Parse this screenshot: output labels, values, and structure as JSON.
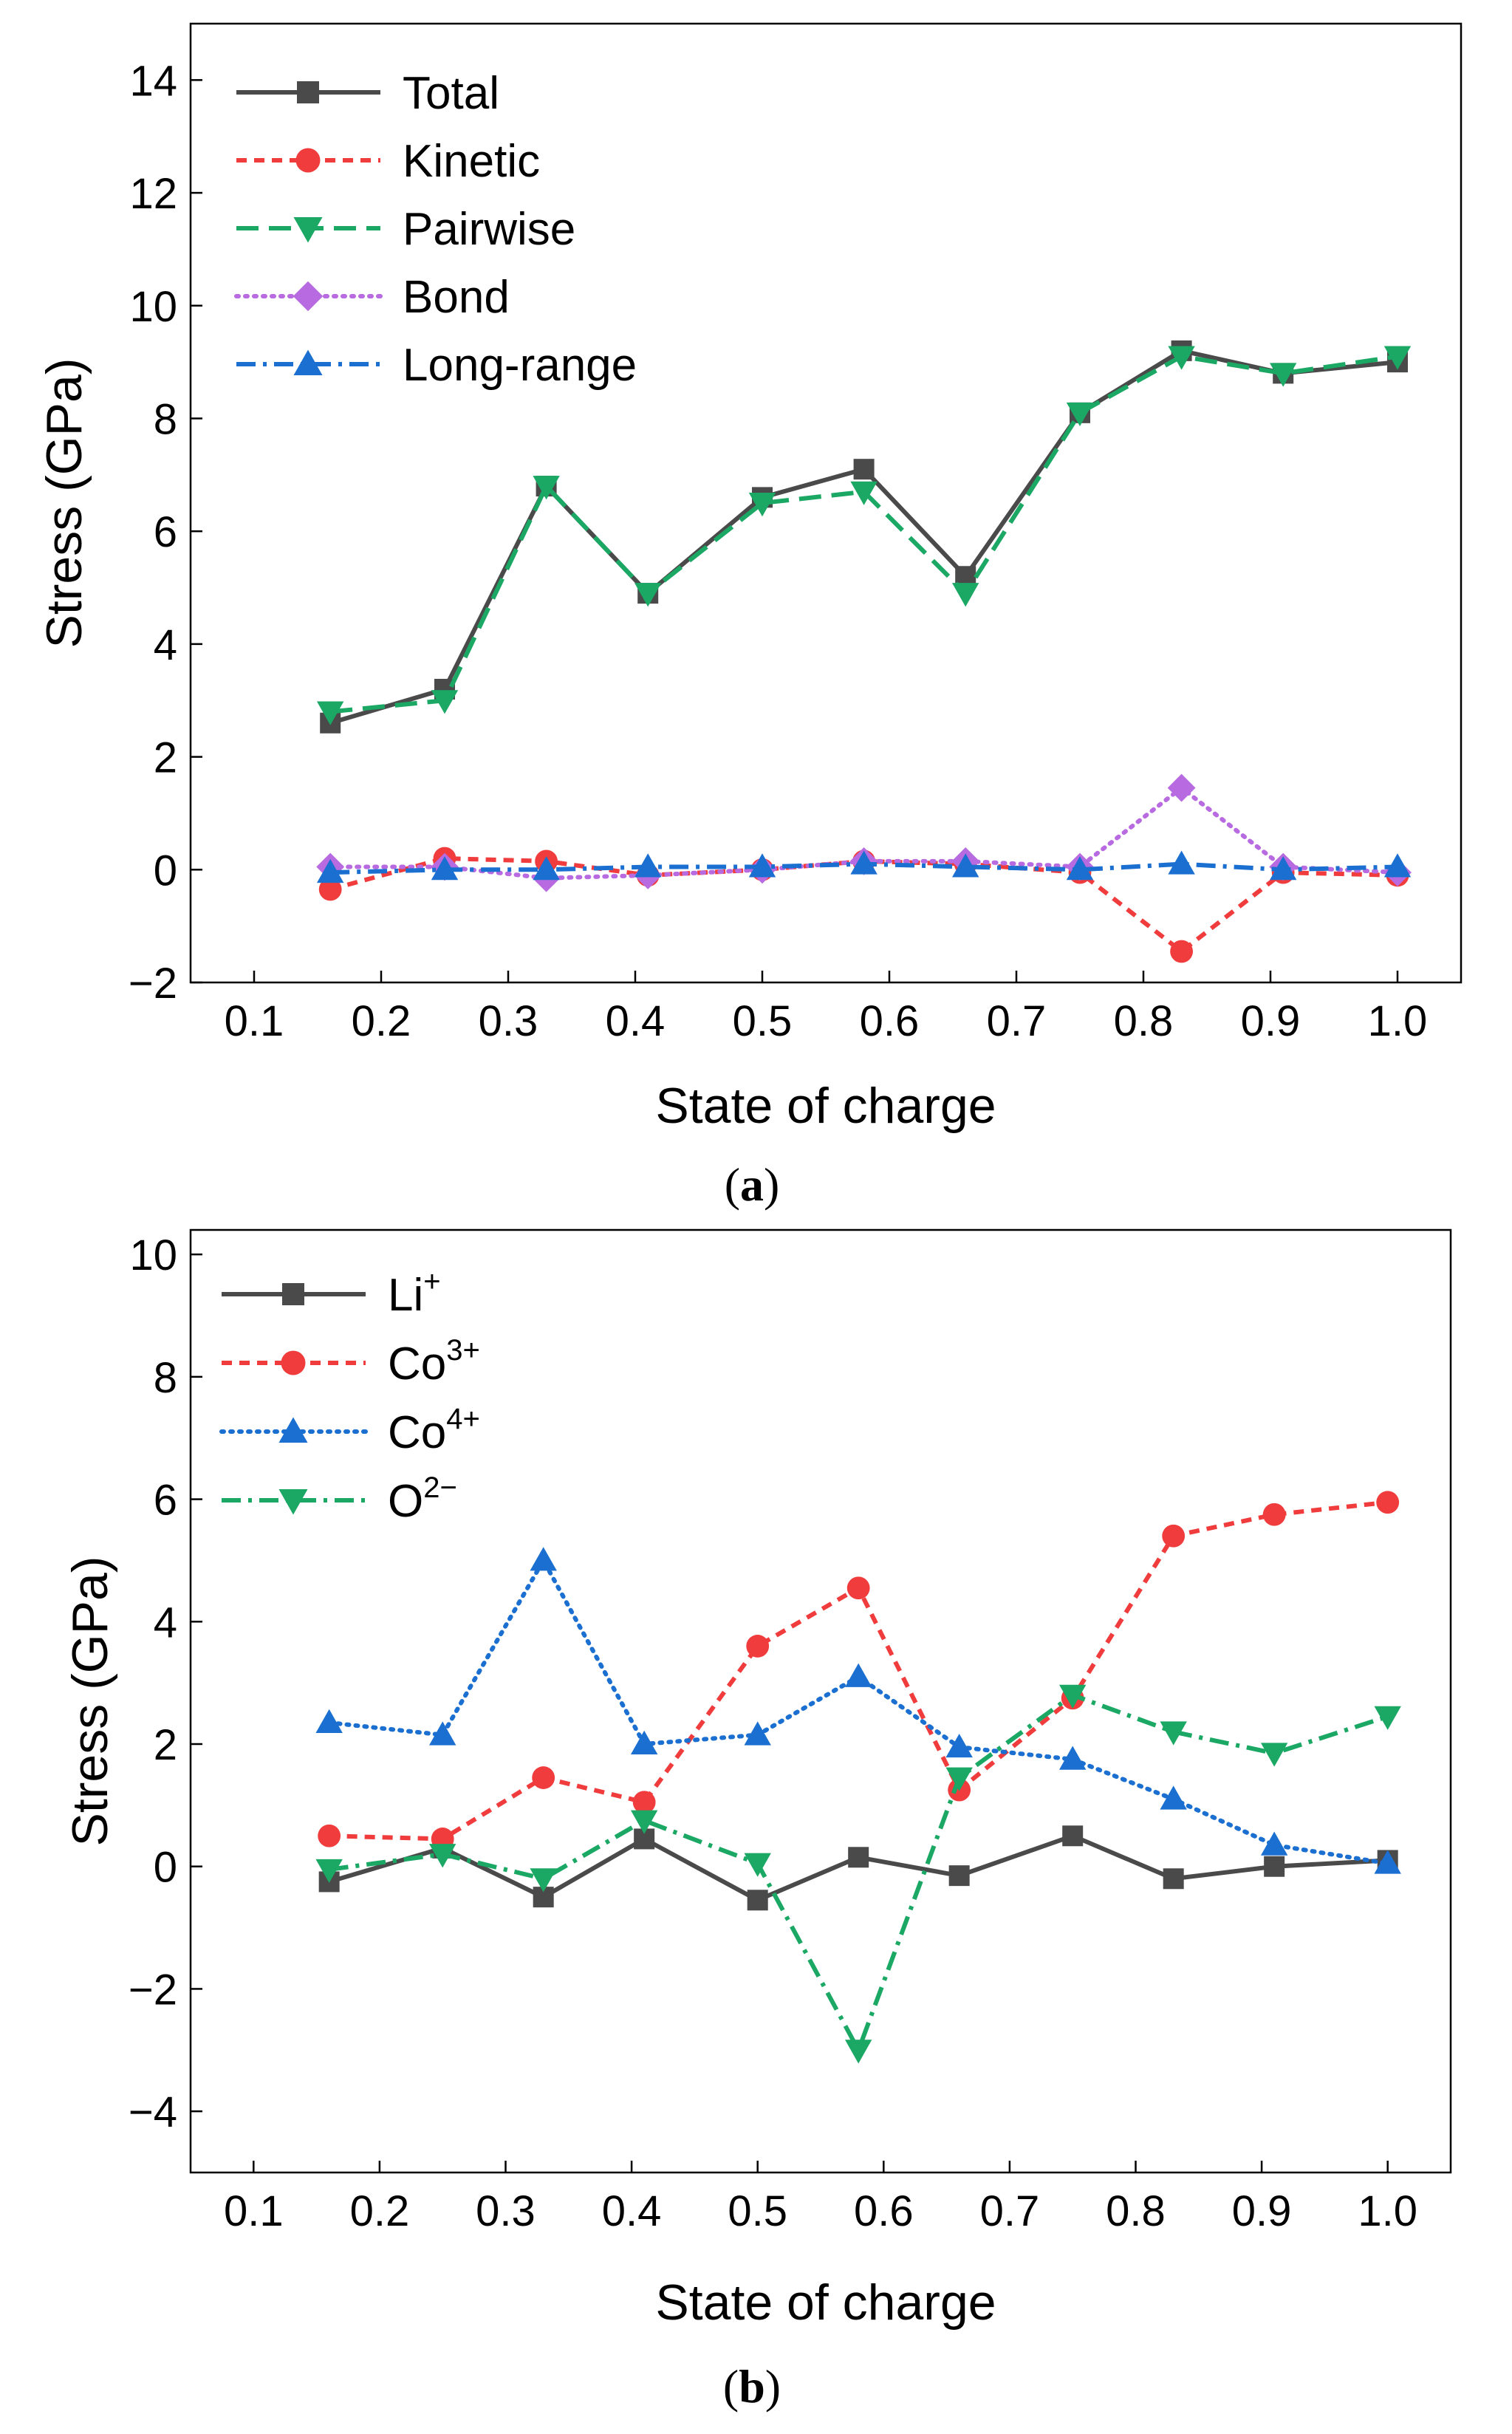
{
  "chart_data": [
    {
      "type": "line",
      "panel_label": "a",
      "xlabel": "State of charge",
      "ylabel": "Stress (GPa)",
      "xlim": [
        0.05,
        1.05
      ],
      "ylim": [
        -2,
        15
      ],
      "xticks": [
        "0.1",
        "0.2",
        "0.3",
        "0.4",
        "0.5",
        "0.6",
        "0.7",
        "0.8",
        "0.9",
        "1.0"
      ],
      "yticks": [
        "−2",
        "0",
        "2",
        "4",
        "6",
        "8",
        "10",
        "12",
        "14"
      ],
      "legend_position": "top-left",
      "x": [
        0.16,
        0.25,
        0.33,
        0.41,
        0.5,
        0.58,
        0.66,
        0.75,
        0.83,
        0.91,
        1.0
      ],
      "series": [
        {
          "name": "Total",
          "color": "#4a4a4a",
          "marker": "square",
          "dash": "solid",
          "values": [
            2.6,
            3.2,
            6.8,
            4.9,
            6.6,
            7.1,
            5.2,
            8.1,
            9.2,
            8.8,
            9.0
          ]
        },
        {
          "name": "Kinetic",
          "color": "#f03c3c",
          "marker": "circle",
          "dash": "dashed",
          "values": [
            -0.35,
            0.2,
            0.15,
            -0.1,
            0.0,
            0.15,
            0.1,
            -0.05,
            -1.45,
            -0.05,
            -0.1
          ]
        },
        {
          "name": "Pairwise",
          "color": "#1aa864",
          "marker": "triangle-down",
          "dash": "longdash",
          "values": [
            2.8,
            3.0,
            6.8,
            4.9,
            6.5,
            6.7,
            4.9,
            8.1,
            9.1,
            8.8,
            9.1
          ]
        },
        {
          "name": "Bond",
          "color": "#b86ae0",
          "marker": "diamond",
          "dash": "dotted",
          "values": [
            0.05,
            0.05,
            -0.15,
            -0.1,
            0.0,
            0.15,
            0.15,
            0.05,
            1.45,
            0.05,
            -0.05
          ]
        },
        {
          "name": "Long-range",
          "color": "#1a6fd0",
          "marker": "triangle-up",
          "dash": "dashdot",
          "values": [
            -0.05,
            0.0,
            0.0,
            0.05,
            0.05,
            0.1,
            0.05,
            0.0,
            0.1,
            0.0,
            0.05
          ]
        }
      ]
    },
    {
      "type": "line",
      "panel_label": "b",
      "xlabel": "State of charge",
      "ylabel": "Stress (GPa)",
      "xlim": [
        0.05,
        1.05
      ],
      "ylim": [
        -5,
        10.4
      ],
      "xticks": [
        "0.1",
        "0.2",
        "0.3",
        "0.4",
        "0.5",
        "0.6",
        "0.7",
        "0.8",
        "0.9",
        "1.0"
      ],
      "yticks": [
        "−4",
        "−2",
        "0",
        "2",
        "4",
        "6",
        "8",
        "10"
      ],
      "legend_position": "top-left",
      "x": [
        0.16,
        0.25,
        0.33,
        0.41,
        0.5,
        0.58,
        0.66,
        0.75,
        0.83,
        0.91,
        1.0
      ],
      "series": [
        {
          "name": "Li",
          "sup": "+",
          "color": "#4a4a4a",
          "marker": "square",
          "dash": "solid",
          "values": [
            -0.25,
            0.3,
            -0.5,
            0.45,
            -0.55,
            0.15,
            -0.15,
            0.5,
            -0.2,
            0.0,
            0.1
          ]
        },
        {
          "name": "Co",
          "sup": "3+",
          "color": "#f03c3c",
          "marker": "circle",
          "dash": "dashed",
          "values": [
            0.5,
            0.45,
            1.45,
            1.05,
            3.6,
            4.55,
            1.25,
            2.75,
            5.4,
            5.75,
            5.95
          ]
        },
        {
          "name": "Co",
          "sup": "4+",
          "color": "#1a6fd0",
          "marker": "triangle-up",
          "dash": "dotted",
          "values": [
            2.35,
            2.15,
            5.0,
            2.0,
            2.15,
            3.1,
            1.95,
            1.75,
            1.1,
            0.35,
            0.05
          ]
        },
        {
          "name": "O",
          "sup": "2−",
          "color": "#1aa864",
          "marker": "triangle-down",
          "dash": "dashdot",
          "values": [
            -0.05,
            0.2,
            -0.2,
            0.75,
            0.05,
            -3.0,
            1.45,
            2.8,
            2.2,
            1.85,
            2.45
          ]
        }
      ]
    }
  ]
}
